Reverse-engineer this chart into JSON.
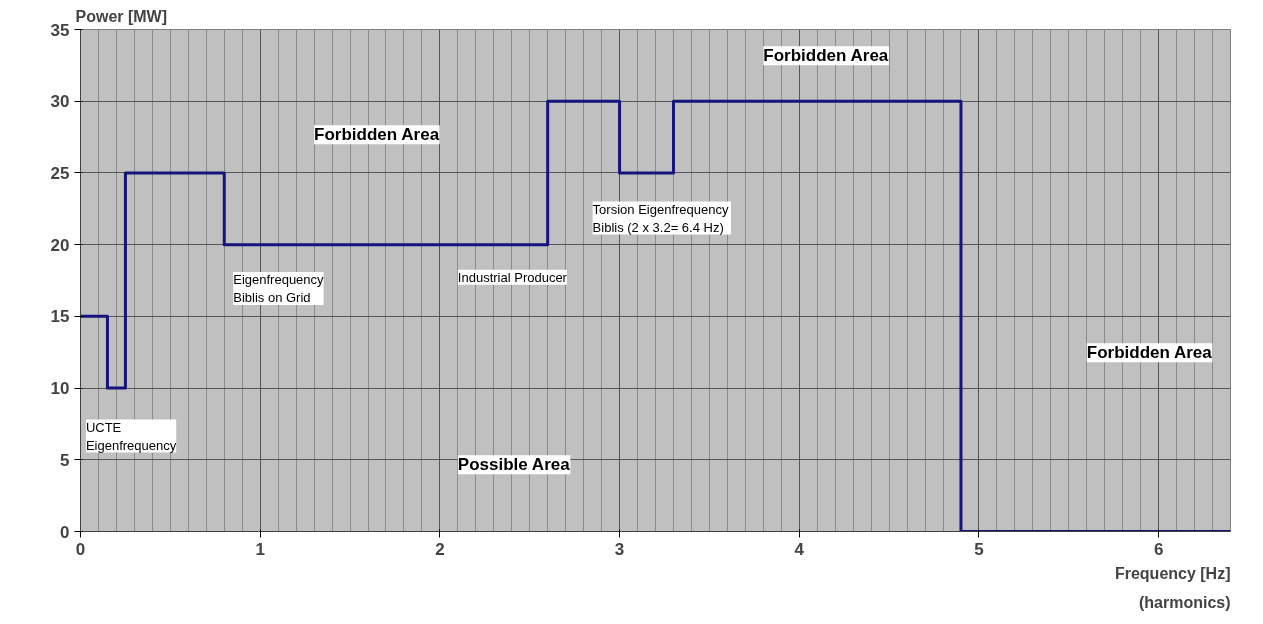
{
  "chart_data": {
    "type": "step",
    "ylabel": "Power [MW]",
    "xlabel": "Frequency [Hz]\n(harmonics)",
    "x": [
      0,
      0.15,
      0.25,
      0.8,
      2.6,
      3.0,
      3.3,
      4.9,
      6.4
    ],
    "series": [
      {
        "color": "#14147a",
        "values": [
          15,
          10,
          25,
          20,
          30,
          25,
          30,
          0,
          0
        ]
      }
    ],
    "xlim": [
      0,
      6.4
    ],
    "xticks": [
      0,
      1,
      2,
      3,
      4,
      5,
      6
    ],
    "ylim": [
      0,
      35
    ],
    "yticks": [
      0,
      5,
      10,
      15,
      20,
      25,
      30,
      35
    ],
    "grid": true,
    "annotations": [
      "Forbidden Area",
      "Forbidden Area",
      "Forbidden Area",
      "Possible Area",
      "UCTE\nEigenfrequency",
      "Eigenfrequency\nBiblis on Grid",
      "Industrial Producer",
      "Torsion Eigenfrequency\nBiblis   (2 x 3.2= 6.4 Hz)"
    ]
  }
}
